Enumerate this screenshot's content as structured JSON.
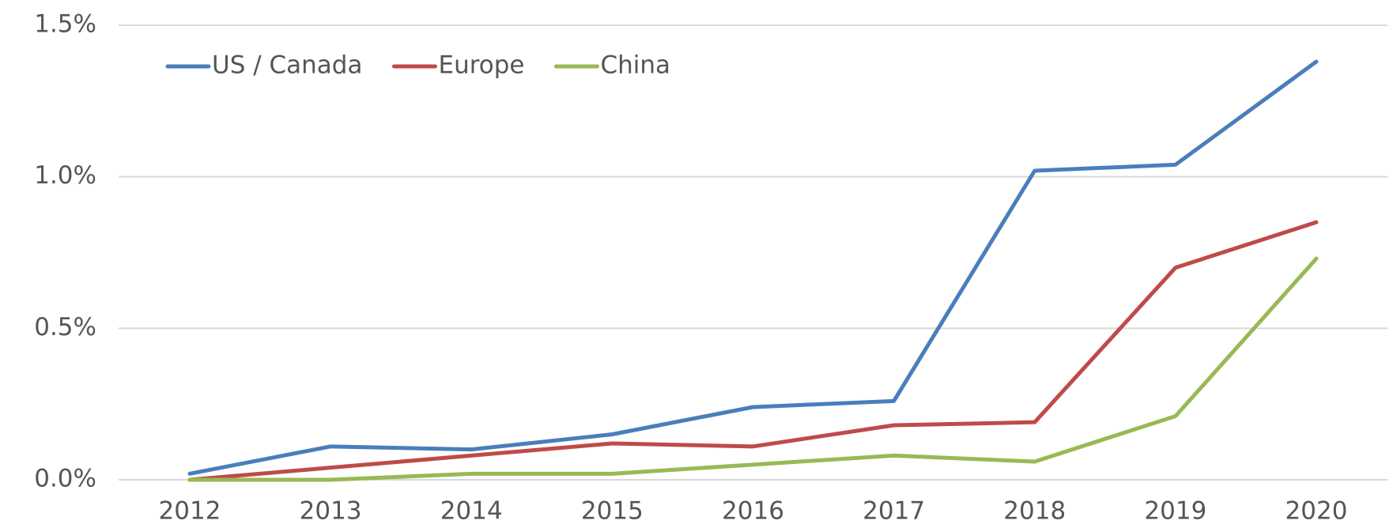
{
  "chart_data": {
    "type": "line",
    "categories": [
      "2012",
      "2013",
      "2014",
      "2015",
      "2016",
      "2017",
      "2018",
      "2019",
      "2020"
    ],
    "series": [
      {
        "name": "US / Canada",
        "color": "#4a7ebb",
        "values": [
          0.02,
          0.11,
          0.1,
          0.15,
          0.24,
          0.26,
          1.02,
          1.04,
          1.38
        ]
      },
      {
        "name": "Europe",
        "color": "#be4b48",
        "values": [
          0,
          0.04,
          0.08,
          0.12,
          0.11,
          0.18,
          0.19,
          0.7,
          0.85
        ]
      },
      {
        "name": "China",
        "color": "#98b954",
        "values": [
          0,
          0,
          0.02,
          0.02,
          0.05,
          0.08,
          0.06,
          0.21,
          0.73
        ]
      }
    ],
    "ylim": [
      0,
      1.5
    ],
    "yticks": [
      {
        "value": 0,
        "label": "0.0%"
      },
      {
        "value": 0.5,
        "label": "0.5%"
      },
      {
        "value": 1,
        "label": "1.0%"
      },
      {
        "value": 1.5,
        "label": "1.5%"
      }
    ],
    "grid": true,
    "legend": "top-left"
  }
}
